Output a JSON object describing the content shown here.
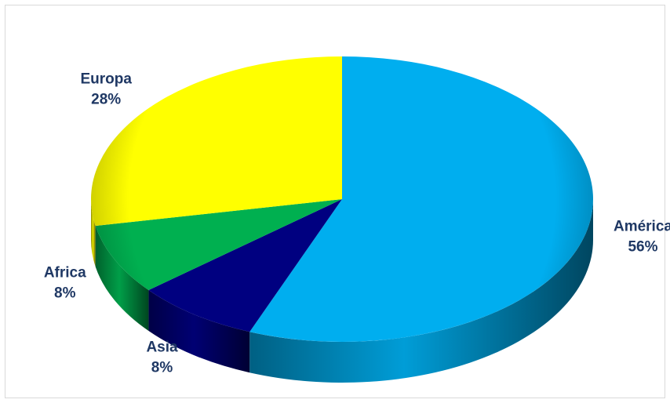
{
  "chart_data": {
    "type": "pie",
    "title": "",
    "style": "3d",
    "legend": "none",
    "slices": [
      {
        "name": "América",
        "value": 56,
        "value_label": "56%",
        "color": "#00aeef"
      },
      {
        "name": "Asia",
        "value": 8,
        "value_label": "8%",
        "color": "#000080"
      },
      {
        "name": "Africa",
        "value": 8,
        "value_label": "8%",
        "color": "#00b050"
      },
      {
        "name": "Europa",
        "value": 28,
        "value_label": "28%",
        "color": "#ffff00"
      }
    ]
  }
}
